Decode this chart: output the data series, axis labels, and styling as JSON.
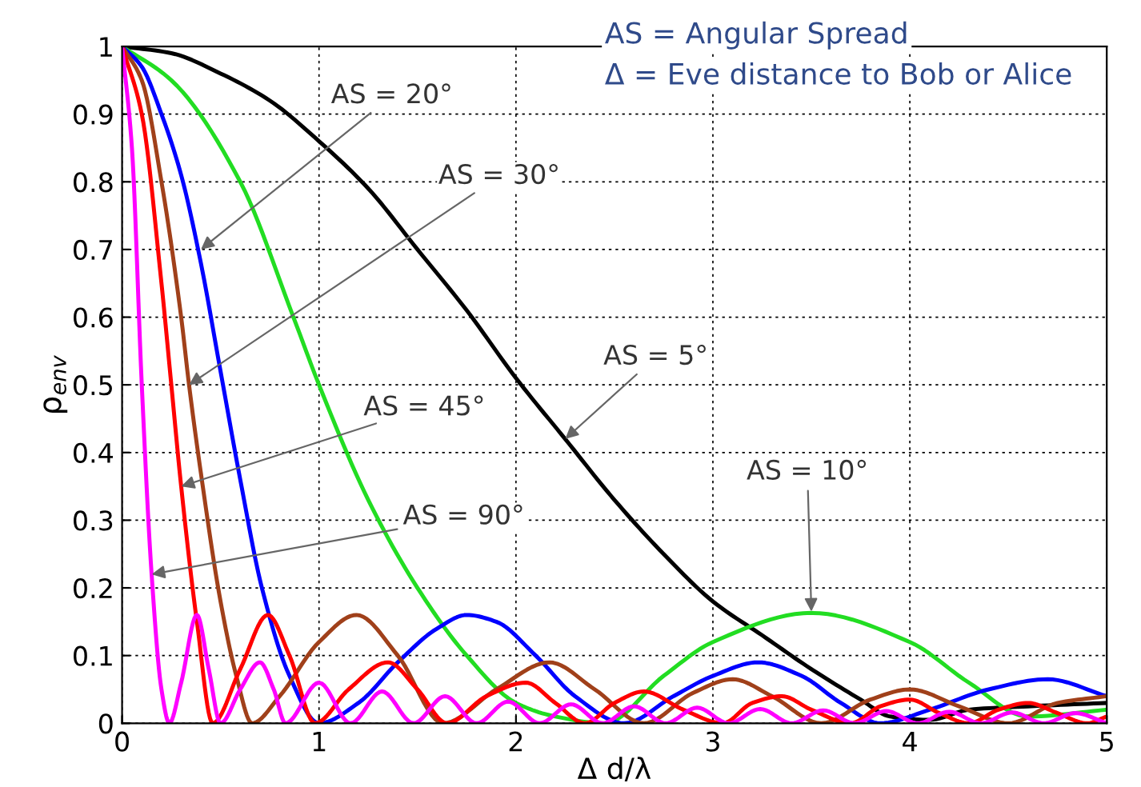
{
  "chart_data": {
    "type": "line",
    "xlabel": "Δ d/λ",
    "ylabel": "ρ$_{env}$",
    "xlim": [
      0,
      5
    ],
    "ylim": [
      0,
      1
    ],
    "xticks": [
      0,
      1,
      2,
      3,
      4,
      5
    ],
    "yticks": [
      0,
      0.1,
      0.2,
      0.3,
      0.4,
      0.5,
      0.6,
      0.7,
      0.8,
      0.9,
      1
    ],
    "grid": true,
    "line_style": "solid",
    "marker": "none",
    "series": [
      {
        "color": "#000000",
        "x": [
          0,
          0.25,
          0.5,
          0.75,
          1,
          1.25,
          1.5,
          1.75,
          2,
          2.25,
          2.5,
          2.75,
          3,
          3.25,
          3.5,
          3.75,
          3.9,
          4.1,
          4.3,
          4.6,
          5
        ],
        "values": [
          1,
          0.99,
          0.96,
          0.92,
          0.86,
          0.79,
          0.7,
          0.61,
          0.51,
          0.42,
          0.33,
          0.25,
          0.18,
          0.13,
          0.08,
          0.035,
          0.01,
          0.005,
          0.02,
          0.025,
          0.03
        ]
      },
      {
        "color": "#22dd22",
        "x": [
          0,
          0.25,
          0.6,
          0.87,
          1,
          1.25,
          1.5,
          1.75,
          2,
          2.2,
          2.45,
          2.75,
          3,
          3.5,
          4,
          4.3,
          4.6,
          5
        ],
        "values": [
          1,
          0.95,
          0.8,
          0.6,
          0.5,
          0.33,
          0.2,
          0.1,
          0.03,
          0.01,
          0,
          0.07,
          0.12,
          0.163,
          0.12,
          0.06,
          0.01,
          0.02
        ]
      },
      {
        "color": "#0000ff",
        "x": [
          0,
          0.1,
          0.2,
          0.3,
          0.4,
          0.5,
          0.6,
          0.71,
          0.85,
          1.0,
          1.2,
          1.4,
          1.6,
          1.75,
          1.9,
          2.1,
          2.3,
          2.55,
          2.8,
          3.0,
          3.23,
          3.45,
          3.65,
          3.85,
          4.1,
          4.4,
          4.7,
          5.0
        ],
        "values": [
          1,
          0.97,
          0.9,
          0.81,
          0.68,
          0.52,
          0.36,
          0.2,
          0.07,
          0,
          0.03,
          0.09,
          0.14,
          0.16,
          0.15,
          0.1,
          0.04,
          0,
          0.04,
          0.07,
          0.09,
          0.07,
          0.03,
          0,
          0.02,
          0.05,
          0.065,
          0.04
        ]
      },
      {
        "color": "#a0401a",
        "x": [
          0,
          0.1,
          0.2,
          0.3,
          0.34,
          0.4,
          0.5,
          0.58,
          0.66,
          0.8,
          1.0,
          1.19,
          1.4,
          1.63,
          1.9,
          2.17,
          2.4,
          2.65,
          2.9,
          3.1,
          3.3,
          3.55,
          3.8,
          4.0,
          4.25,
          4.5,
          4.75,
          5
        ],
        "values": [
          1,
          0.95,
          0.8,
          0.6,
          0.5,
          0.37,
          0.18,
          0.07,
          0,
          0.04,
          0.12,
          0.16,
          0.1,
          0,
          0.05,
          0.09,
          0.05,
          0,
          0.045,
          0.065,
          0.04,
          0,
          0.035,
          0.05,
          0.025,
          0,
          0.03,
          0.04
        ]
      },
      {
        "color": "#ff0000",
        "x": [
          0,
          0.1,
          0.2,
          0.25,
          0.3,
          0.38,
          0.46,
          0.6,
          0.74,
          0.85,
          0.98,
          1.15,
          1.35,
          1.5,
          1.65,
          1.85,
          2.05,
          2.2,
          2.35,
          2.5,
          2.65,
          2.85,
          3.05,
          3.2,
          3.35,
          3.5,
          3.7,
          3.85,
          4.0,
          4.15,
          4.3,
          4.45,
          4.6,
          4.75,
          4.9,
          5
        ],
        "values": [
          1,
          0.9,
          0.65,
          0.5,
          0.35,
          0.15,
          0,
          0.08,
          0.16,
          0.1,
          0,
          0.05,
          0.09,
          0.05,
          0,
          0.04,
          0.06,
          0.03,
          0,
          0.03,
          0.047,
          0.02,
          0,
          0.03,
          0.04,
          0.02,
          0,
          0.025,
          0.035,
          0.015,
          0,
          0.02,
          0.03,
          0.015,
          0,
          0.01
        ]
      },
      {
        "color": "#ff00ff",
        "x": [
          0,
          0.05,
          0.1,
          0.15,
          0.2,
          0.24,
          0.3,
          0.38,
          0.44,
          0.5,
          0.6,
          0.7,
          0.77,
          0.83,
          1.0,
          1.16,
          1.32,
          1.48,
          1.64,
          1.8,
          1.96,
          2.12,
          2.28,
          2.44,
          2.6,
          2.76,
          2.92,
          3.08,
          3.24,
          3.4,
          3.56,
          3.72,
          3.88,
          4.04,
          4.2,
          4.36,
          4.52,
          4.68,
          4.84,
          5
        ],
        "values": [
          1,
          0.85,
          0.5,
          0.22,
          0.05,
          0,
          0.06,
          0.16,
          0.08,
          0,
          0.05,
          0.09,
          0.05,
          0,
          0.06,
          0,
          0.047,
          0,
          0.04,
          0,
          0.032,
          0,
          0.028,
          0,
          0.025,
          0,
          0.023,
          0,
          0.021,
          0,
          0.019,
          0,
          0.018,
          0,
          0.017,
          0,
          0.016,
          0,
          0.015,
          0
        ]
      }
    ],
    "annotations": [
      {
        "text": "AS = 20°",
        "x": 0.4,
        "y": 0.7
      },
      {
        "text": "AS = 30°",
        "x": 0.34,
        "y": 0.5
      },
      {
        "text": "AS = 5°",
        "x": 2.25,
        "y": 0.42
      },
      {
        "text": "AS = 45°",
        "x": 0.3,
        "y": 0.35
      },
      {
        "text": "AS = 90°",
        "x": 0.15,
        "y": 0.22
      },
      {
        "text": "AS = 10°",
        "x": 3.5,
        "y": 0.165
      },
      "AS = Angular Spread",
      "Δ = Eve distance to Bob or Alice"
    ]
  }
}
